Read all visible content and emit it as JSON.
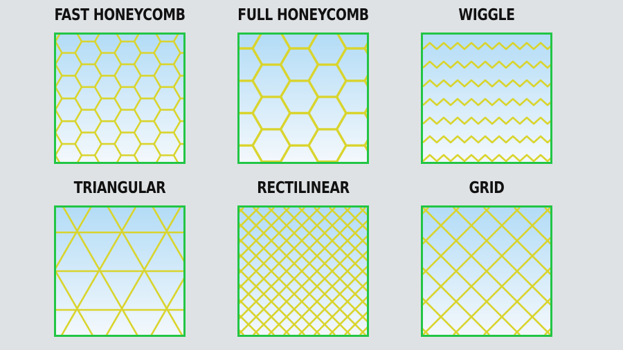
{
  "patterns": [
    {
      "id": "fast_honeycomb",
      "label": "FAST HONEYCOMB"
    },
    {
      "id": "full_honeycomb",
      "label": "FULL HONEYCOMB"
    },
    {
      "id": "wiggle",
      "label": "WIGGLE"
    },
    {
      "id": "triangular",
      "label": "TRIANGULAR"
    },
    {
      "id": "rectilinear",
      "label": "RECTILINEAR"
    },
    {
      "id": "grid",
      "label": "GRID"
    }
  ],
  "colors": {
    "background": "#dfe2e5",
    "frame": "#22c545",
    "infill_line": "#d9d42d",
    "fill_top": "#b3dcf6",
    "fill_bottom": "#f3f8fc",
    "title_text": "#111111"
  }
}
